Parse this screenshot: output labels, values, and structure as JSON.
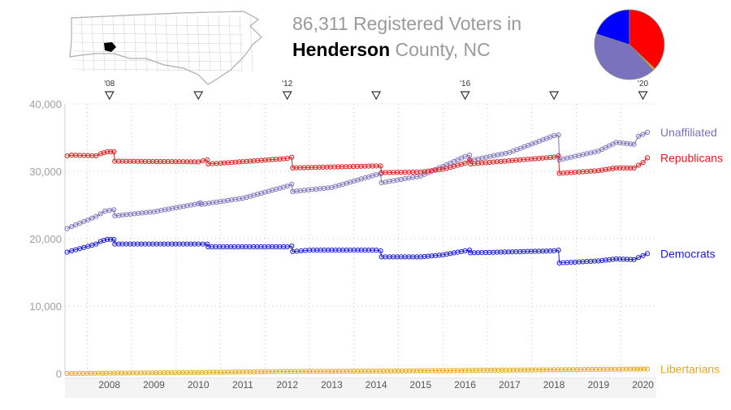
{
  "title": {
    "line1": "86,311 Registered Voters in",
    "county": "Henderson",
    "suffix": "County, NC"
  },
  "colors": {
    "unaffiliated": "#7b72bd",
    "republicans": "#e31a1c",
    "democrats": "#1a1ad4",
    "libertarians": "#e6a817",
    "axis_text": "#a0a0a0",
    "map_outline": "#b0b0b0",
    "map_highlight": "#000000"
  },
  "pie": {
    "slices": [
      {
        "party": "Republicans",
        "share": 0.37,
        "color": "#ff0000"
      },
      {
        "party": "Libertarians",
        "share": 0.01,
        "color": "#e6a817"
      },
      {
        "party": "Unaffiliated",
        "share": 0.42,
        "color": "#7b72bd"
      },
      {
        "party": "Democrats",
        "share": 0.2,
        "color": "#0000ff"
      }
    ]
  },
  "election_markers": [
    {
      "year": 2008.5,
      "label": "'08"
    },
    {
      "year": 2010.5,
      "label": ""
    },
    {
      "year": 2012.5,
      "label": "'12"
    },
    {
      "year": 2014.5,
      "label": ""
    },
    {
      "year": 2016.5,
      "label": "'16"
    },
    {
      "year": 2018.5,
      "label": ""
    },
    {
      "year": 2020.5,
      "label": "'20"
    }
  ],
  "chart_data": {
    "type": "line",
    "x_unit": "year",
    "xlim": [
      2007.5,
      2020.8
    ],
    "ylim": [
      0,
      40000
    ],
    "y_ticks": [
      0,
      10000,
      20000,
      30000,
      40000
    ],
    "y_tick_labels": [
      "0",
      "10,000",
      "20,000",
      "30,000",
      "40,000"
    ],
    "x_tick_labels": [
      "2008",
      "2009",
      "2010",
      "2011",
      "2012",
      "2013",
      "2014",
      "2015",
      "2016",
      "2017",
      "2018",
      "2019",
      "2020"
    ],
    "grid": true,
    "legend": "line-end labels, right",
    "series": [
      {
        "name": "Unaffiliated",
        "points": [
          [
            2007.55,
            21500
          ],
          [
            2007.65,
            21800
          ],
          [
            2008.2,
            23300
          ],
          [
            2008.3,
            23700
          ],
          [
            2008.4,
            24100
          ],
          [
            2008.5,
            24200
          ],
          [
            2008.6,
            24300
          ],
          [
            2008.62,
            23400
          ],
          [
            2009.5,
            24000
          ],
          [
            2010.5,
            25200
          ],
          [
            2010.55,
            25300
          ],
          [
            2010.57,
            25100
          ],
          [
            2011.5,
            26000
          ],
          [
            2012.5,
            27800
          ],
          [
            2012.6,
            28100
          ],
          [
            2012.62,
            27000
          ],
          [
            2013.5,
            27600
          ],
          [
            2014.5,
            29500
          ],
          [
            2014.6,
            29600
          ],
          [
            2014.62,
            28300
          ],
          [
            2015.5,
            29300
          ],
          [
            2016.5,
            32200
          ],
          [
            2016.6,
            32400
          ],
          [
            2016.62,
            31600
          ],
          [
            2017.5,
            32800
          ],
          [
            2018.5,
            35300
          ],
          [
            2018.6,
            35400
          ],
          [
            2018.62,
            31700
          ],
          [
            2019.5,
            33000
          ],
          [
            2019.9,
            34300
          ],
          [
            2020.3,
            34000
          ],
          [
            2020.4,
            35200
          ],
          [
            2020.6,
            35800
          ]
        ]
      },
      {
        "name": "Republicans",
        "points": [
          [
            2007.55,
            32300
          ],
          [
            2007.65,
            32400
          ],
          [
            2008.2,
            32300
          ],
          [
            2008.3,
            32600
          ],
          [
            2008.45,
            32900
          ],
          [
            2008.6,
            32900
          ],
          [
            2008.62,
            31500
          ],
          [
            2010.5,
            31400
          ],
          [
            2010.7,
            31700
          ],
          [
            2010.72,
            31100
          ],
          [
            2011.0,
            31200
          ],
          [
            2012.5,
            31900
          ],
          [
            2012.6,
            32100
          ],
          [
            2012.62,
            30500
          ],
          [
            2014.5,
            30800
          ],
          [
            2014.6,
            30800
          ],
          [
            2014.62,
            29800
          ],
          [
            2015.5,
            29900
          ],
          [
            2016.0,
            30300
          ],
          [
            2016.5,
            31200
          ],
          [
            2016.6,
            31700
          ],
          [
            2016.62,
            31100
          ],
          [
            2018.5,
            32100
          ],
          [
            2018.6,
            32300
          ],
          [
            2018.62,
            29700
          ],
          [
            2019.5,
            30100
          ],
          [
            2019.9,
            30500
          ],
          [
            2020.3,
            30500
          ],
          [
            2020.5,
            31300
          ],
          [
            2020.6,
            32000
          ]
        ]
      },
      {
        "name": "Democrats",
        "points": [
          [
            2007.55,
            18000
          ],
          [
            2007.65,
            18200
          ],
          [
            2008.2,
            19200
          ],
          [
            2008.3,
            19600
          ],
          [
            2008.45,
            19900
          ],
          [
            2008.6,
            19900
          ],
          [
            2008.62,
            19200
          ],
          [
            2010.5,
            19200
          ],
          [
            2010.7,
            19200
          ],
          [
            2010.72,
            18800
          ],
          [
            2012.5,
            18800
          ],
          [
            2012.6,
            18900
          ],
          [
            2012.62,
            18100
          ],
          [
            2013.0,
            18300
          ],
          [
            2014.5,
            18300
          ],
          [
            2014.6,
            18200
          ],
          [
            2014.62,
            17300
          ],
          [
            2015.5,
            17300
          ],
          [
            2016.0,
            17600
          ],
          [
            2016.5,
            18200
          ],
          [
            2016.6,
            18300
          ],
          [
            2016.62,
            17900
          ],
          [
            2018.5,
            18200
          ],
          [
            2018.6,
            18300
          ],
          [
            2018.62,
            16400
          ],
          [
            2019.5,
            16700
          ],
          [
            2019.9,
            17000
          ],
          [
            2020.3,
            16900
          ],
          [
            2020.5,
            17500
          ],
          [
            2020.6,
            17800
          ]
        ]
      },
      {
        "name": "Libertarians",
        "points": [
          [
            2007.55,
            0
          ],
          [
            2007.65,
            0
          ],
          [
            2008.6,
            50
          ],
          [
            2010.5,
            150
          ],
          [
            2012.5,
            300
          ],
          [
            2014.5,
            350
          ],
          [
            2016.5,
            450
          ],
          [
            2018.5,
            550
          ],
          [
            2020.3,
            650
          ],
          [
            2020.6,
            650
          ]
        ]
      }
    ]
  }
}
